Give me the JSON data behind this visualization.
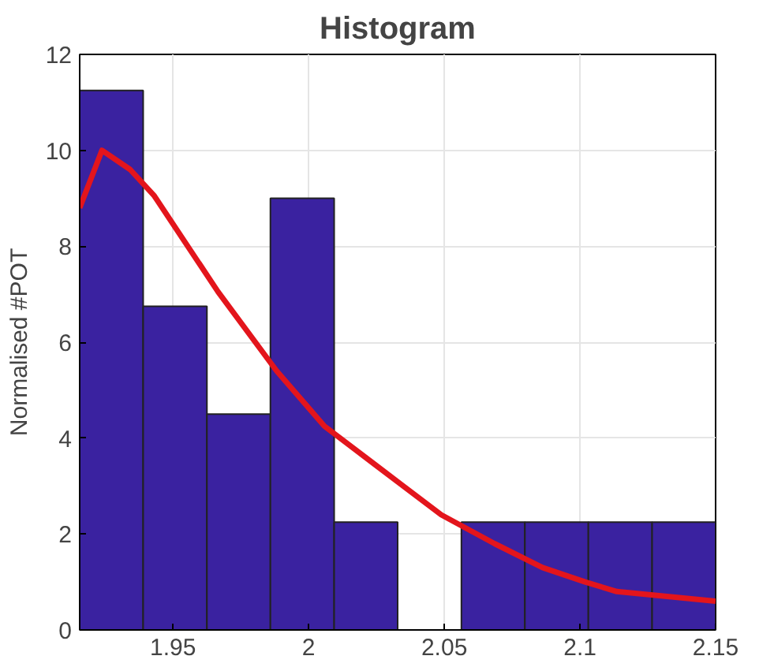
{
  "chart_data": {
    "type": "histogram",
    "title": "Histogram",
    "ylabel": "Normalised #POT",
    "bins": [
      1.9156,
      1.939,
      1.9625,
      1.9859,
      2.0094,
      2.0328,
      2.0563,
      2.0797,
      2.1031,
      2.1266,
      2.15
    ],
    "values": [
      11.25,
      6.75,
      4.5,
      9,
      2.25,
      0,
      2.25,
      2.25,
      2.25,
      2.25
    ],
    "color": "#3a22a0",
    "series": [
      {
        "type": "line",
        "color": "#e3151c",
        "x": [
          1.9156,
          1.9238,
          1.9342,
          1.9431,
          1.9666,
          1.9882,
          2.0058,
          2.0244,
          2.0489,
          2.0685,
          2.0862,
          2.1019,
          2.1136,
          2.15
        ],
        "values": [
          8.8,
          10,
          9.6,
          9.05,
          7.05,
          5.4,
          4.25,
          3.45,
          2.4,
          1.8,
          1.3,
          1.0,
          0.8,
          0.6
        ]
      }
    ],
    "xlim": [
      1.9156,
      2.15
    ],
    "xticks": [
      1.95,
      2,
      2.05,
      2.1,
      2.15
    ],
    "ylim": [
      0,
      12
    ],
    "yticks": [
      0,
      2,
      4,
      6,
      8,
      10,
      12
    ],
    "grid": true
  }
}
